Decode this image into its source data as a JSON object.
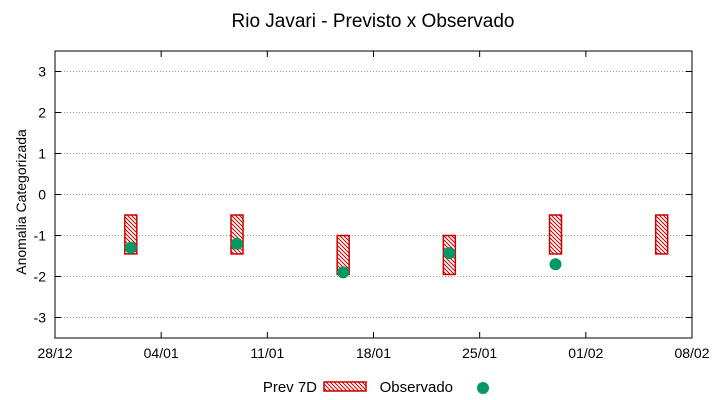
{
  "chart_data": {
    "type": "floating-bar-scatter",
    "title": "Rio Javari - Previsto x Observado",
    "ylabel": "Anomalia Categorizada",
    "xlabel": "",
    "ylim": [
      -3.5,
      3.5
    ],
    "yticks": [
      3,
      2,
      1,
      0,
      -1,
      -2,
      -3
    ],
    "ytick_labels": [
      "3",
      "2",
      "1",
      "0",
      "-1",
      "-2",
      "-3"
    ],
    "xlim_days": [
      0,
      42
    ],
    "xticks": [
      {
        "day": 0,
        "label": "28/12"
      },
      {
        "day": 7,
        "label": "04/01"
      },
      {
        "day": 14,
        "label": "11/01"
      },
      {
        "day": 21,
        "label": "18/01"
      },
      {
        "day": 28,
        "label": "25/01"
      },
      {
        "day": 35,
        "label": "01/02"
      },
      {
        "day": 42,
        "label": "08/02"
      }
    ],
    "grid": "horizontal-dotted",
    "series": [
      {
        "name": "Prev 7D",
        "kind": "range-bar",
        "color": "#cc0000",
        "points": [
          {
            "day": 5,
            "low": -1.45,
            "high": -0.5
          },
          {
            "day": 12,
            "low": -1.45,
            "high": -0.5
          },
          {
            "day": 19,
            "low": -1.95,
            "high": -1.0
          },
          {
            "day": 26,
            "low": -1.95,
            "high": -1.0
          },
          {
            "day": 33,
            "low": -1.45,
            "high": -0.5
          },
          {
            "day": 40,
            "low": -1.45,
            "high": -0.5
          }
        ]
      },
      {
        "name": "Observado",
        "kind": "point",
        "color": "#009966",
        "points": [
          {
            "day": 5,
            "value": -1.3
          },
          {
            "day": 12,
            "value": -1.2
          },
          {
            "day": 19,
            "value": -1.9
          },
          {
            "day": 26,
            "value": -1.43
          },
          {
            "day": 33,
            "value": -1.7
          }
        ]
      }
    ],
    "legend": {
      "position": "bottom-center",
      "entries": [
        "Prev 7D",
        "Observado"
      ]
    }
  }
}
